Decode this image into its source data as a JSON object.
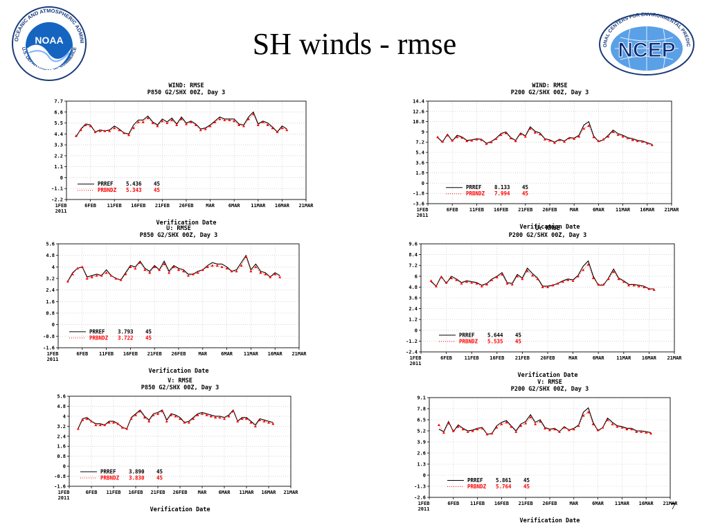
{
  "slide": {
    "title": "SH winds - rmse",
    "page_number": "7"
  },
  "logos": {
    "noaa": {
      "text": "NOAA",
      "ring_text": "NATIONAL OCEANIC AND ATMOSPHERIC ADMINISTRATION",
      "ring_text_bottom": "U.S. DEPARTMENT OF COMMERCE"
    },
    "ncep": {
      "text": "NCEP",
      "ring_text": "NATIONAL CENTERS FOR ENVIRONMENTAL PREDICTION"
    }
  },
  "colors": {
    "prref": "#000000",
    "prbndz": "#ff0000",
    "grid": "#bbbbbb",
    "axis": "#000000"
  },
  "chart_data": [
    {
      "type": "line",
      "title": "WIND: RMSE",
      "subtitle": "P850 G2/SHX 00Z, Day 3",
      "xlabel": "Verification Date",
      "x_ticks": [
        "1FEB\n2011",
        "6FEB",
        "11FEB",
        "16FEB",
        "21FEB",
        "26FEB",
        "MAR",
        "6MAR",
        "11MAR",
        "16MAR",
        "21MAR"
      ],
      "y_ticks": [
        "-2.2",
        "-1.1",
        "0",
        "1.1",
        "2.2",
        "3.3",
        "4.4",
        "5.5",
        "6.6",
        "7.7"
      ],
      "ylim": [
        -2.2,
        7.7
      ],
      "series": [
        {
          "name": "PRREF",
          "stat": "5.436",
          "n": "45",
          "style": "solid",
          "values": [
            4.1,
            4.9,
            5.4,
            5.3,
            4.6,
            4.8,
            4.7,
            4.8,
            5.2,
            4.9,
            4.5,
            4.4,
            5.3,
            5.8,
            5.8,
            6.2,
            5.6,
            5.3,
            5.9,
            5.6,
            6.0,
            5.4,
            6.1,
            5.5,
            5.7,
            5.4,
            4.9,
            5.0,
            5.3,
            5.7,
            6.1,
            5.9,
            5.9,
            5.9,
            5.4,
            5.3,
            6.1,
            6.6,
            5.4,
            5.7,
            5.5,
            5.1,
            4.6,
            5.2,
            4.9
          ]
        },
        {
          "name": "PRBNDZ",
          "stat": "5.343",
          "n": "45",
          "style": "dotted",
          "values": [
            4.2,
            4.8,
            5.3,
            5.2,
            4.6,
            4.7,
            4.7,
            4.7,
            5.0,
            4.8,
            4.5,
            4.3,
            5.0,
            5.6,
            5.6,
            6.0,
            5.5,
            5.2,
            5.7,
            5.5,
            5.8,
            5.3,
            5.9,
            5.4,
            5.6,
            5.3,
            4.8,
            4.9,
            5.2,
            5.6,
            5.9,
            5.8,
            5.8,
            5.7,
            5.3,
            5.2,
            5.9,
            6.4,
            5.3,
            5.6,
            5.3,
            5.0,
            4.6,
            5.0,
            4.8
          ]
        }
      ]
    },
    {
      "type": "line",
      "title": "WIND: RMSE",
      "subtitle": "P200 G2/SHX 00Z, Day 3",
      "xlabel": "Verification Date",
      "x_ticks": [
        "1FEB\n2011",
        "6FEB",
        "11FEB",
        "16FEB",
        "21FEB",
        "26FEB",
        "MAR",
        "6MAR",
        "11MAR",
        "16MAR",
        "21MAR"
      ],
      "y_ticks": [
        "-3.6",
        "-1.8",
        "0",
        "1.8",
        "3.6",
        "5.4",
        "7.2",
        "9",
        "10.8",
        "12.6",
        "14.4"
      ],
      "ylim": [
        -3.6,
        14.4
      ],
      "series": [
        {
          "name": "PRREF",
          "stat": "8.133",
          "n": "45",
          "style": "solid",
          "values": [
            8.0,
            7.2,
            8.6,
            7.4,
            8.4,
            8.1,
            7.5,
            7.6,
            7.8,
            7.7,
            7.0,
            7.3,
            7.9,
            8.7,
            9.0,
            8.0,
            7.5,
            8.8,
            8.3,
            9.9,
            9.1,
            8.8,
            7.8,
            7.6,
            7.2,
            7.7,
            7.4,
            8.0,
            7.9,
            8.4,
            10.2,
            10.8,
            8.3,
            7.3,
            7.6,
            8.4,
            9.3,
            8.7,
            8.4,
            8.0,
            7.8,
            7.5,
            7.4,
            7.1,
            6.8
          ]
        },
        {
          "name": "PRBNDZ",
          "stat": "7.994",
          "n": "45",
          "style": "dotted",
          "values": [
            8.1,
            7.3,
            8.4,
            7.5,
            8.1,
            8.0,
            7.4,
            7.5,
            7.7,
            7.6,
            6.9,
            7.2,
            7.8,
            8.5,
            8.8,
            7.9,
            7.4,
            8.6,
            8.2,
            9.6,
            8.9,
            8.6,
            7.7,
            7.5,
            7.1,
            7.6,
            7.3,
            7.9,
            7.8,
            8.2,
            9.6,
            10.1,
            8.1,
            7.4,
            7.7,
            8.2,
            9.0,
            8.5,
            8.2,
            7.9,
            7.6,
            7.4,
            7.3,
            7.0,
            6.7
          ]
        }
      ]
    },
    {
      "type": "line",
      "title": "U: RMSE",
      "subtitle": "P850 G2/SHX 00Z, Day 3",
      "xlabel": "Verification Date",
      "x_ticks": [
        "1FEB\n2011",
        "6FEB",
        "11FEB",
        "16FEB",
        "21FEB",
        "26FEB",
        "MAR",
        "6MAR",
        "11MAR",
        "16MAR",
        "21MAR"
      ],
      "y_ticks": [
        "-1.6",
        "-0.8",
        "0",
        "0.8",
        "1.6",
        "2.4",
        "3.2",
        "4",
        "4.8",
        "5.6"
      ],
      "ylim": [
        -1.6,
        5.6
      ],
      "series": [
        {
          "name": "PRREF",
          "stat": "3.793",
          "n": "45",
          "style": "solid",
          "values": [
            3.0,
            3.6,
            3.9,
            4.0,
            3.3,
            3.4,
            3.5,
            3.4,
            3.8,
            3.4,
            3.2,
            3.1,
            3.6,
            4.1,
            4.0,
            4.4,
            3.9,
            3.7,
            4.1,
            3.8,
            4.4,
            3.7,
            4.1,
            3.9,
            3.8,
            3.5,
            3.5,
            3.7,
            3.8,
            4.1,
            4.3,
            4.2,
            4.2,
            4.0,
            3.7,
            3.8,
            4.3,
            4.8,
            3.8,
            4.2,
            3.7,
            3.6,
            3.3,
            3.6,
            3.4
          ]
        },
        {
          "name": "PRBNDZ",
          "stat": "3.722",
          "n": "45",
          "style": "dotted",
          "values": [
            3.0,
            3.5,
            3.9,
            4.0,
            3.2,
            3.3,
            3.4,
            3.4,
            3.6,
            3.4,
            3.2,
            3.1,
            3.5,
            4.0,
            3.9,
            4.3,
            3.8,
            3.6,
            4.0,
            3.8,
            4.2,
            3.6,
            4.0,
            3.8,
            3.7,
            3.4,
            3.5,
            3.6,
            3.8,
            4.0,
            4.1,
            4.1,
            4.0,
            3.9,
            3.7,
            3.7,
            4.1,
            4.7,
            3.7,
            4.0,
            3.6,
            3.5,
            3.3,
            3.5,
            3.3
          ]
        }
      ]
    },
    {
      "type": "line",
      "title": "U: RMSE",
      "subtitle": "P200 G2/SHX 00Z, Day 3",
      "xlabel": "Verification Date",
      "x_ticks": [
        "1FEB\n2011",
        "6FEB",
        "11FEB",
        "16FEB",
        "21FEB",
        "26FEB",
        "MAR",
        "6MAR",
        "11MAR",
        "16MAR",
        "21MAR"
      ],
      "y_ticks": [
        "-2.4",
        "-1.2",
        "0",
        "1.2",
        "2.4",
        "3.6",
        "4.8",
        "6",
        "7.2",
        "8.4",
        "9.6"
      ],
      "ylim": [
        -2.4,
        9.6
      ],
      "series": [
        {
          "name": "PRREF",
          "stat": "5.644",
          "n": "45",
          "style": "solid",
          "values": [
            5.4,
            4.9,
            6.0,
            5.2,
            6.0,
            5.7,
            5.3,
            5.5,
            5.4,
            5.3,
            5.0,
            5.2,
            5.7,
            6.0,
            6.4,
            5.3,
            5.2,
            6.2,
            5.8,
            6.9,
            6.3,
            5.8,
            4.9,
            4.9,
            5.0,
            5.2,
            5.5,
            5.7,
            5.6,
            6.1,
            7.1,
            7.7,
            6.0,
            5.0,
            5.0,
            5.8,
            6.8,
            5.8,
            5.5,
            5.1,
            5.1,
            5.0,
            4.9,
            4.6,
            4.6
          ]
        },
        {
          "name": "PRBNDZ",
          "stat": "5.535",
          "n": "45",
          "style": "dotted",
          "values": [
            5.5,
            4.9,
            5.9,
            5.3,
            5.8,
            5.6,
            5.2,
            5.4,
            5.3,
            5.2,
            4.9,
            5.1,
            5.6,
            5.9,
            6.2,
            5.2,
            5.1,
            6.0,
            5.7,
            6.6,
            6.1,
            5.7,
            4.8,
            4.8,
            5.0,
            5.2,
            5.4,
            5.6,
            5.5,
            6.0,
            6.7,
            7.3,
            5.8,
            5.1,
            5.1,
            5.7,
            6.5,
            5.7,
            5.4,
            5.0,
            5.0,
            4.9,
            4.8,
            4.6,
            4.5
          ]
        }
      ]
    },
    {
      "type": "line",
      "title": "V: RMSE",
      "subtitle": "P850 G2/SHX 00Z, Day 3",
      "xlabel": "Verification Date",
      "x_ticks": [
        "1FEB\n2011",
        "6FEB",
        "11FEB",
        "16FEB",
        "21FEB",
        "26FEB",
        "MAR",
        "6MAR",
        "11MAR",
        "16MAR",
        "21MAR"
      ],
      "y_ticks": [
        "-1.6",
        "-0.8",
        "0",
        "0.8",
        "1.6",
        "2.4",
        "3.2",
        "4",
        "4.8",
        "5.6"
      ],
      "ylim": [
        -1.6,
        5.6
      ],
      "series": [
        {
          "name": "PRREF",
          "stat": "3.890",
          "n": "45",
          "style": "solid",
          "values": [
            3.0,
            3.8,
            3.9,
            3.6,
            3.4,
            3.4,
            3.3,
            3.6,
            3.6,
            3.4,
            3.1,
            3.0,
            3.9,
            4.2,
            4.5,
            4.0,
            3.7,
            4.2,
            4.3,
            4.5,
            3.7,
            4.2,
            4.1,
            3.9,
            3.5,
            3.6,
            3.9,
            4.2,
            4.3,
            4.2,
            4.1,
            4.0,
            4.0,
            3.9,
            4.1,
            4.5,
            3.6,
            3.9,
            3.9,
            3.6,
            3.3,
            3.8,
            3.7,
            3.6,
            3.5
          ]
        },
        {
          "name": "PRBNDZ",
          "stat": "3.830",
          "n": "45",
          "style": "dotted",
          "values": [
            3.0,
            3.7,
            3.8,
            3.6,
            3.3,
            3.3,
            3.3,
            3.5,
            3.5,
            3.4,
            3.1,
            3.0,
            3.8,
            4.1,
            4.4,
            3.9,
            3.6,
            4.1,
            4.2,
            4.4,
            3.6,
            4.1,
            4.0,
            3.8,
            3.5,
            3.5,
            3.8,
            4.1,
            4.2,
            4.1,
            4.0,
            3.9,
            3.9,
            3.8,
            4.0,
            4.4,
            3.6,
            3.8,
            3.8,
            3.5,
            3.2,
            3.7,
            3.6,
            3.5,
            3.4
          ]
        }
      ]
    },
    {
      "type": "line",
      "title": "V: RMSE",
      "subtitle": "P200 G2/SHX 00Z, Day 3",
      "xlabel": "Verification Date",
      "x_ticks": [
        "1FEB\n2011",
        "6FEB",
        "11FEB",
        "16FEB",
        "21FEB",
        "26FEB",
        "MAR",
        "6MAR",
        "11MAR",
        "16MAR",
        "21MAR"
      ],
      "y_ticks": [
        "-2.6",
        "-1.3",
        "0",
        "1.3",
        "2.6",
        "3.9",
        "5.2",
        "6.5",
        "7.8",
        "9.1"
      ],
      "ylim": [
        -2.6,
        9.1
      ],
      "series": [
        {
          "name": "PRREF",
          "stat": "5.861",
          "n": "45",
          "style": "solid",
          "values": [
            5.4,
            5.1,
            6.3,
            5.1,
            5.9,
            5.5,
            5.2,
            5.3,
            5.5,
            5.6,
            4.8,
            4.9,
            5.8,
            6.2,
            6.4,
            5.8,
            5.2,
            6.0,
            6.3,
            7.1,
            6.2,
            6.5,
            5.6,
            5.4,
            5.5,
            5.1,
            5.7,
            5.3,
            5.5,
            5.9,
            7.4,
            7.9,
            6.2,
            5.2,
            5.6,
            6.7,
            6.2,
            5.8,
            5.7,
            5.5,
            5.5,
            5.2,
            5.2,
            5.1,
            5.0
          ]
        },
        {
          "name": "PRBNDZ",
          "stat": "5.764",
          "n": "45",
          "style": "dotted",
          "values": [
            5.9,
            5.0,
            6.1,
            5.2,
            5.7,
            5.4,
            5.1,
            5.2,
            5.4,
            5.5,
            4.8,
            4.9,
            5.6,
            6.0,
            6.2,
            5.7,
            5.1,
            5.8,
            6.1,
            6.8,
            6.0,
            6.3,
            5.5,
            5.3,
            5.4,
            5.1,
            5.6,
            5.3,
            5.4,
            5.8,
            7.0,
            7.4,
            6.0,
            5.3,
            5.6,
            6.5,
            6.0,
            5.7,
            5.6,
            5.4,
            5.4,
            5.1,
            5.1,
            5.0,
            4.9
          ]
        }
      ]
    }
  ]
}
